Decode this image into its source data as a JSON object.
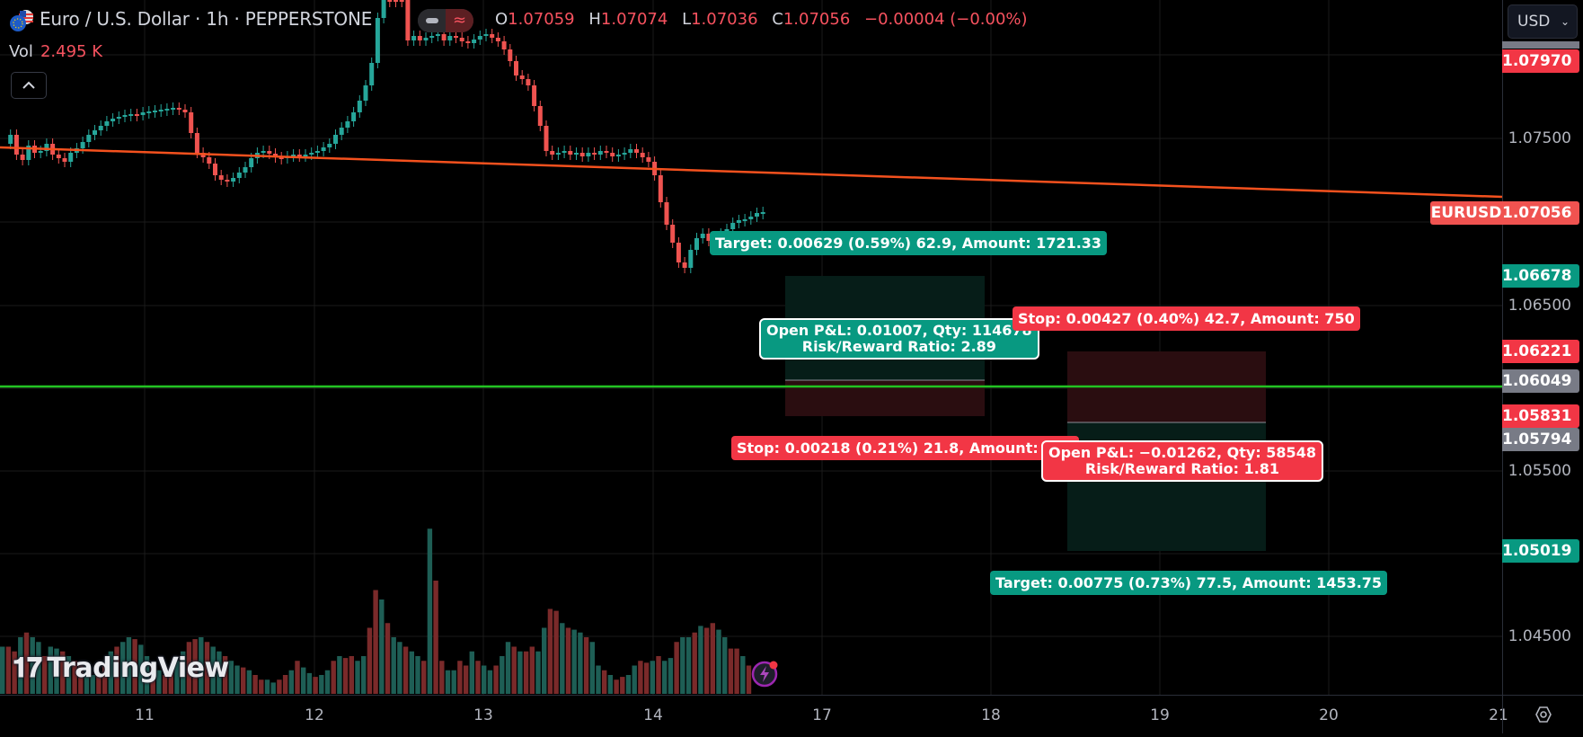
{
  "header": {
    "symbol_title": "Euro / U.S. Dollar · 1h · PEPPERSTONE",
    "ohlc": {
      "open_key": "O",
      "open": "1.07059",
      "high_key": "H",
      "high": "1.07074",
      "low_key": "L",
      "low": "1.07036",
      "close_key": "C",
      "close": "1.07056",
      "change": "−0.00004 (−0.00%)"
    },
    "volume": {
      "label": "Vol",
      "value": "2.495 K"
    },
    "collapse_icon": "chevron-up-icon"
  },
  "price_axis": {
    "currency": "USD",
    "ticks": [
      "1.07500",
      "1.06500",
      "1.05500",
      "1.04500"
    ],
    "tags": [
      {
        "value": "1.07970",
        "color": "#f23645"
      },
      {
        "value": "1.07056",
        "color": "#f05350"
      },
      {
        "value": "1.06678",
        "color": "#089981"
      },
      {
        "value": "1.06221",
        "color": "#f23645"
      },
      {
        "value": "1.06049",
        "color": "#787b86"
      },
      {
        "value": "1.05831",
        "color": "#f23645"
      },
      {
        "value": "1.05794",
        "color": "#787b86"
      },
      {
        "value": "1.05019",
        "color": "#089981"
      }
    ],
    "ticker_label": "EURUSD"
  },
  "time_axis": {
    "ticks": [
      "11",
      "12",
      "13",
      "14",
      "17",
      "18",
      "19",
      "20",
      "21"
    ],
    "settings_icon": "settings-hexagon-icon"
  },
  "long_position": {
    "target_label": "Target: 0.00629 (0.59%) 62.9, Amount: 1721.33",
    "pnl_line1": "Open P&L: 0.01007, Qty: 114678",
    "pnl_line2": "Risk/Reward Ratio: 2.89",
    "stop_label": "Stop: 0.00218 (0.21%) 21.8, Amount: 750"
  },
  "short_position": {
    "stop_label": "Stop: 0.00427 (0.40%) 42.7, Amount: 750",
    "pnl_line1": "Open P&L: −0.01262, Qty: 58548",
    "pnl_line2": "Risk/Reward Ratio: 1.81",
    "target_label": "Target: 0.00775 (0.73%) 77.5, Amount: 1453.75"
  },
  "watermark": {
    "brand": "TradingView"
  },
  "colors": {
    "up": "#26a69a",
    "down": "#ef5350",
    "vol_up": "#1e5e55",
    "vol_down": "#7a2a2a",
    "trendline": "#f4511e",
    "horizontal_line": "#22c322",
    "bg": "#000000",
    "grid": "#1a1a1a"
  }
}
